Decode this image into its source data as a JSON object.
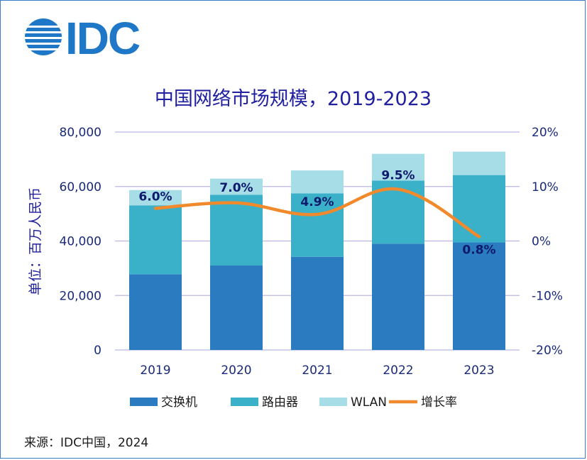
{
  "logo": {
    "text": "IDC",
    "color": "#1f77c8"
  },
  "chart_data": {
    "type": "bar",
    "title": "中国网络市场规模，2019-2023",
    "ylabel": "单位：百万人民币",
    "categories": [
      "2019",
      "2020",
      "2021",
      "2022",
      "2023"
    ],
    "series": [
      {
        "name": "交换机",
        "values": [
          27800,
          31000,
          34200,
          39000,
          39500
        ],
        "color": "#2a7bbf"
      },
      {
        "name": "路由器",
        "values": [
          25300,
          26000,
          23300,
          23200,
          24700
        ],
        "color": "#3bb0c9"
      },
      {
        "name": "WLAN",
        "values": [
          5600,
          5900,
          8400,
          9800,
          8600
        ],
        "color": "#a6dde6"
      }
    ],
    "line": {
      "name": "增长率",
      "values": [
        6.0,
        7.0,
        4.9,
        9.5,
        0.8
      ],
      "labels": [
        "6.0%",
        "7.0%",
        "4.9%",
        "9.5%",
        "0.8%"
      ],
      "color": "#f08a2c"
    },
    "ylim": [
      0,
      80000
    ],
    "y2lim": [
      -20,
      20
    ],
    "yticks": [
      "0",
      "20,000",
      "40,000",
      "60,000",
      "80,000"
    ],
    "y2ticks": [
      "-20%",
      "-10%",
      "0%",
      "10%",
      "20%"
    ],
    "grid": true,
    "legend_position": "bottom"
  },
  "source": "来源：IDC中国，2024"
}
